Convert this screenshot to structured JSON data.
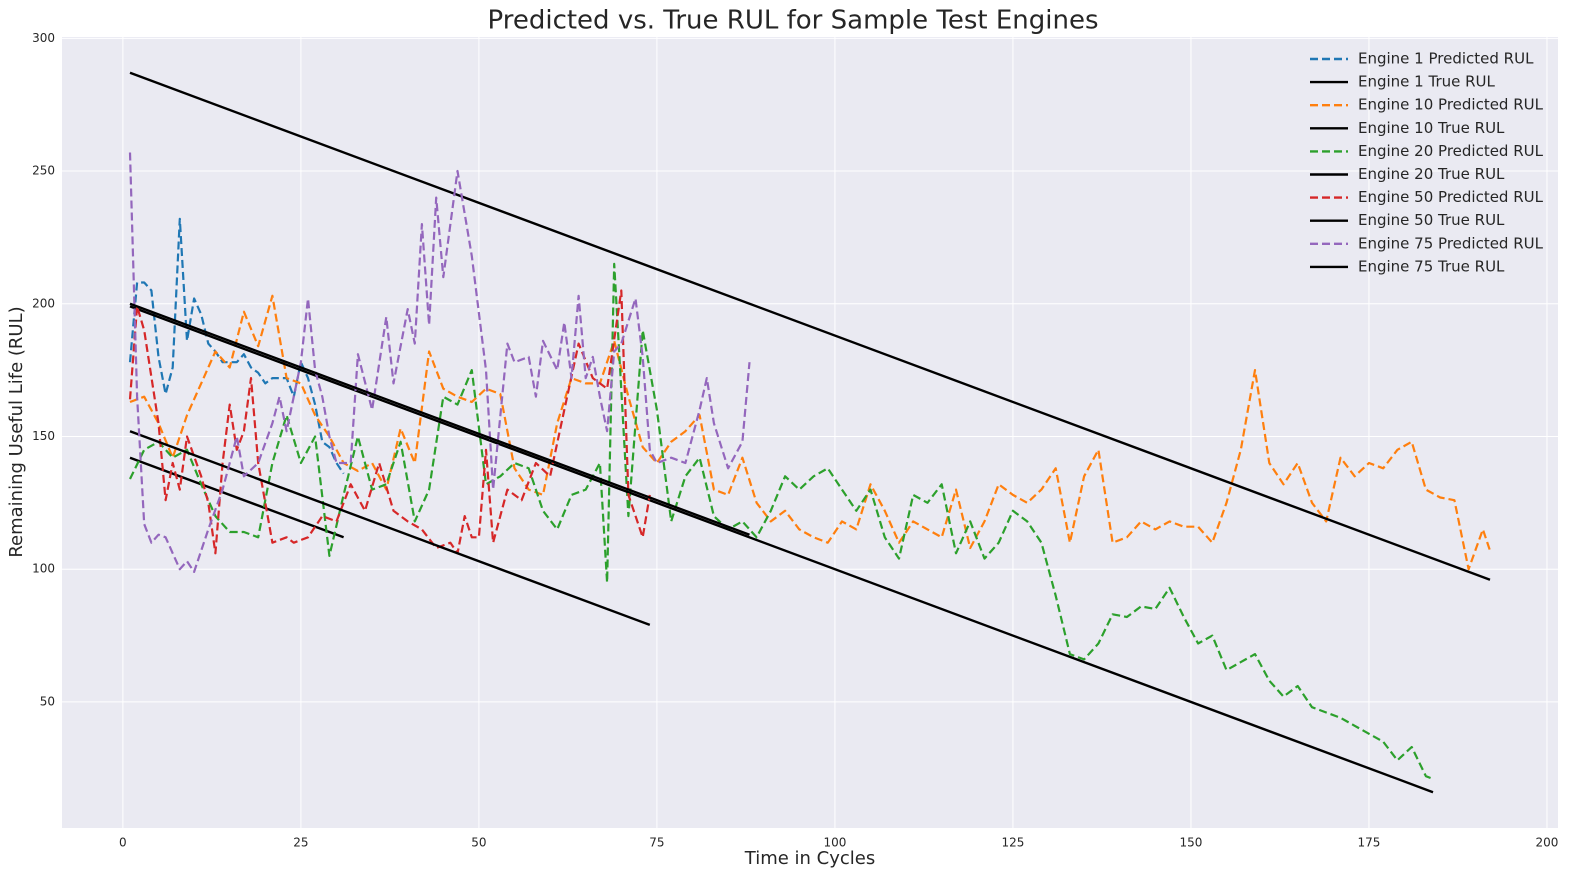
{
  "chart_data": {
    "type": "line",
    "title": "Predicted vs. True RUL for Sample Test Engines",
    "x_label": "Time in Cycles",
    "y_label": "Remaining Useful Life (RUL)",
    "xlim": [
      -8.55,
      201.55
    ],
    "ylim": [
      2.5,
      300.5
    ],
    "xticks": [
      0,
      25,
      50,
      75,
      100,
      125,
      150,
      175,
      200
    ],
    "yticks": [
      50,
      100,
      150,
      200,
      250,
      300
    ],
    "grid": true,
    "legend": "upper right",
    "series": [
      {
        "name": "Engine 1 Predicted RUL",
        "color": "#1f77b4",
        "linestyle": "dashed",
        "x": [
          1,
          2,
          3,
          4,
          5,
          6,
          7,
          8,
          9,
          10,
          11,
          12,
          13,
          14,
          15,
          16,
          17,
          18,
          19,
          20,
          21,
          22,
          23,
          24,
          25,
          26,
          27,
          28,
          29,
          30,
          31
        ],
        "values": [
          178,
          208,
          208,
          205,
          180,
          166,
          176,
          232,
          186,
          202,
          196,
          185,
          182,
          178,
          178,
          178,
          181,
          176,
          174,
          170,
          172,
          172,
          172,
          165,
          178,
          172,
          162,
          148,
          146,
          140,
          136
        ]
      },
      {
        "name": "Engine 1 True RUL",
        "color": "#000000",
        "linestyle": "solid",
        "x": [
          1,
          31
        ],
        "values": [
          142,
          112
        ]
      },
      {
        "name": "Engine 10 Predicted RUL",
        "color": "#ff7f0e",
        "linestyle": "dashed",
        "x": [
          1,
          3,
          5,
          7,
          9,
          11,
          13,
          15,
          17,
          19,
          21,
          23,
          25,
          27,
          29,
          31,
          33,
          35,
          37,
          39,
          41,
          43,
          45,
          47,
          49,
          51,
          53,
          55,
          57,
          59,
          61,
          63,
          65,
          67,
          69,
          71,
          73,
          75,
          77,
          79,
          81,
          83,
          85,
          87,
          89,
          91,
          93,
          95,
          97,
          99,
          101,
          103,
          105,
          107,
          109,
          111,
          113,
          115,
          117,
          119,
          121,
          123,
          125,
          127,
          129,
          131,
          133,
          135,
          137,
          139,
          141,
          143,
          145,
          147,
          149,
          151,
          153,
          155,
          157,
          159,
          161,
          163,
          165,
          167,
          169,
          171,
          173,
          175,
          177,
          179,
          181,
          183,
          185,
          187,
          189,
          191,
          192
        ],
        "values": [
          163,
          165,
          155,
          142,
          158,
          170,
          182,
          176,
          197,
          184,
          203,
          172,
          170,
          158,
          150,
          140,
          137,
          140,
          130,
          153,
          140,
          182,
          168,
          165,
          163,
          168,
          166,
          138,
          130,
          128,
          155,
          172,
          170,
          170,
          186,
          165,
          146,
          140,
          148,
          152,
          158,
          130,
          128,
          142,
          125,
          118,
          122,
          115,
          112,
          110,
          118,
          115,
          132,
          122,
          110,
          118,
          115,
          112,
          130,
          108,
          118,
          132,
          128,
          125,
          130,
          138,
          110,
          135,
          145,
          110,
          112,
          118,
          115,
          118,
          116,
          116,
          110,
          125,
          145,
          175,
          140,
          132,
          140,
          125,
          118,
          142,
          135,
          140,
          138,
          145,
          148,
          130,
          127,
          126,
          100,
          115,
          107
        ]
      },
      {
        "name": "Engine 10 True RUL",
        "color": "#000000",
        "linestyle": "solid",
        "x": [
          1,
          192
        ],
        "values": [
          287,
          96
        ]
      },
      {
        "name": "Engine 20 Predicted RUL",
        "color": "#2ca02c",
        "linestyle": "dashed",
        "x": [
          1,
          3,
          5,
          7,
          9,
          11,
          13,
          15,
          17,
          19,
          21,
          23,
          25,
          27,
          29,
          31,
          33,
          35,
          37,
          39,
          41,
          43,
          45,
          47,
          49,
          51,
          53,
          55,
          57,
          59,
          61,
          63,
          65,
          67,
          68,
          69,
          71,
          73,
          75,
          77,
          79,
          81,
          83,
          85,
          87,
          89,
          91,
          93,
          95,
          97,
          99,
          101,
          103,
          105,
          107,
          109,
          111,
          113,
          115,
          117,
          119,
          121,
          123,
          125,
          127,
          129,
          131,
          133,
          135,
          137,
          139,
          141,
          143,
          145,
          147,
          149,
          151,
          153,
          155,
          157,
          159,
          161,
          163,
          165,
          167,
          169,
          171,
          173,
          175,
          177,
          179,
          181,
          183,
          184
        ],
        "values": [
          134,
          145,
          148,
          142,
          145,
          132,
          120,
          114,
          114,
          112,
          140,
          158,
          140,
          150,
          105,
          128,
          150,
          130,
          132,
          148,
          118,
          130,
          165,
          162,
          175,
          132,
          135,
          140,
          138,
          122,
          115,
          128,
          130,
          140,
          95,
          215,
          120,
          190,
          160,
          118,
          135,
          142,
          120,
          115,
          118,
          112,
          122,
          135,
          130,
          135,
          138,
          130,
          122,
          130,
          112,
          104,
          128,
          125,
          132,
          106,
          118,
          104,
          110,
          122,
          118,
          110,
          90,
          68,
          66,
          72,
          83,
          82,
          86,
          85,
          93,
          82,
          72,
          75,
          62,
          65,
          68,
          58,
          52,
          56,
          48,
          46,
          44,
          41,
          38,
          35,
          28,
          33,
          22,
          21
        ]
      },
      {
        "name": "Engine 20 True RUL",
        "color": "#000000",
        "linestyle": "solid",
        "x": [
          1,
          184
        ],
        "values": [
          199,
          16
        ]
      },
      {
        "name": "Engine 50 Predicted RUL",
        "color": "#d62728",
        "linestyle": "dashed",
        "x": [
          1,
          2,
          3,
          5,
          6,
          7,
          8,
          9,
          11,
          12,
          13,
          14,
          15,
          16,
          17,
          18,
          19,
          21,
          23,
          24,
          26,
          28,
          30,
          32,
          34,
          36,
          38,
          40,
          42,
          44,
          46,
          47,
          48,
          49,
          50,
          51,
          52,
          54,
          56,
          58,
          60,
          62,
          64,
          66,
          68,
          70,
          71,
          73,
          74
        ],
        "values": [
          164,
          199,
          190,
          155,
          126,
          140,
          130,
          150,
          135,
          125,
          106,
          140,
          162,
          145,
          152,
          172,
          140,
          110,
          112,
          110,
          112,
          120,
          118,
          132,
          122,
          140,
          122,
          118,
          115,
          108,
          110,
          106,
          120,
          112,
          112,
          145,
          110,
          130,
          126,
          140,
          135,
          160,
          185,
          172,
          168,
          205,
          128,
          112,
          128
        ]
      },
      {
        "name": "Engine 50 True RUL",
        "color": "#000000",
        "linestyle": "solid",
        "x": [
          1,
          74
        ],
        "values": [
          152,
          79
        ]
      },
      {
        "name": "Engine 75 Predicted RUL",
        "color": "#9467bd",
        "linestyle": "dashed",
        "x": [
          1,
          2,
          3,
          4,
          5,
          6,
          8,
          9,
          10,
          12,
          14,
          16,
          17,
          19,
          21,
          22,
          23,
          25,
          26,
          27,
          28,
          29,
          30,
          32,
          33,
          35,
          37,
          38,
          40,
          41,
          42,
          43,
          44,
          45,
          47,
          49,
          51,
          52,
          54,
          55,
          57,
          58,
          59,
          61,
          62,
          63,
          64,
          65,
          66,
          67,
          68,
          69,
          70,
          72,
          73,
          74,
          75,
          77,
          79,
          81,
          82,
          83,
          85,
          87,
          88
        ],
        "values": [
          257,
          165,
          117,
          110,
          113,
          112,
          100,
          103,
          99,
          115,
          130,
          150,
          135,
          140,
          155,
          165,
          152,
          178,
          202,
          175,
          165,
          150,
          140,
          140,
          181,
          160,
          195,
          170,
          198,
          185,
          230,
          192,
          240,
          210,
          250,
          218,
          175,
          130,
          185,
          178,
          180,
          165,
          186,
          175,
          193,
          172,
          203,
          172,
          180,
          165,
          152,
          182,
          185,
          202,
          180,
          145,
          140,
          142,
          140,
          160,
          172,
          155,
          138,
          148,
          178
        ]
      },
      {
        "name": "Engine 75 True RUL",
        "color": "#000000",
        "linestyle": "solid",
        "x": [
          1,
          88
        ],
        "values": [
          200,
          113
        ]
      }
    ]
  }
}
